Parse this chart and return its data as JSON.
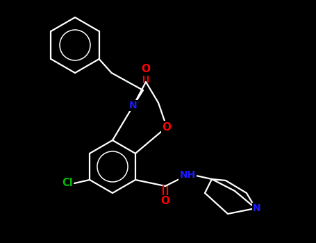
{
  "background_color": "#000000",
  "bond_color": "#ffffff",
  "atom_colors": {
    "O": "#ff0000",
    "N": "#1a1aff",
    "Cl": "#00bb00",
    "C": "#ffffff"
  },
  "figsize": [
    4.55,
    3.5
  ],
  "dpi": 100,
  "lw": 1.6,
  "fs": 9.5
}
